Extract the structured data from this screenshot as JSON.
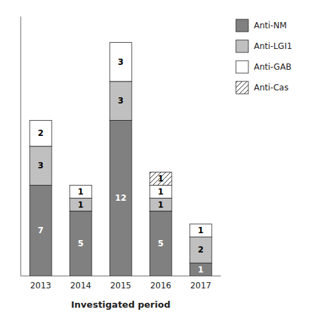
{
  "chart_data": {
    "type": "bar",
    "stacked": true,
    "categories": [
      "2013",
      "2014",
      "2015",
      "2016",
      "2017"
    ],
    "series": [
      {
        "name": "Anti-NM",
        "color": "#808080",
        "values": [
          7,
          5,
          12,
          5,
          1
        ]
      },
      {
        "name": "Anti-LGI1",
        "color": "#c0c0c0",
        "values": [
          3,
          1,
          3,
          1,
          2
        ]
      },
      {
        "name": "Anti-GAB",
        "color": "#ffffff",
        "values": [
          2,
          1,
          3,
          1,
          1
        ]
      },
      {
        "name": "Anti-Cas",
        "color": "#ffffff",
        "values": [
          0,
          0,
          0,
          1,
          0
        ]
      }
    ],
    "xlabel": "Investigated period",
    "ylim": [
      0,
      20
    ],
    "yticks": [],
    "tick_labels": "x",
    "data_labels": true,
    "grid": false,
    "legend": "right"
  }
}
